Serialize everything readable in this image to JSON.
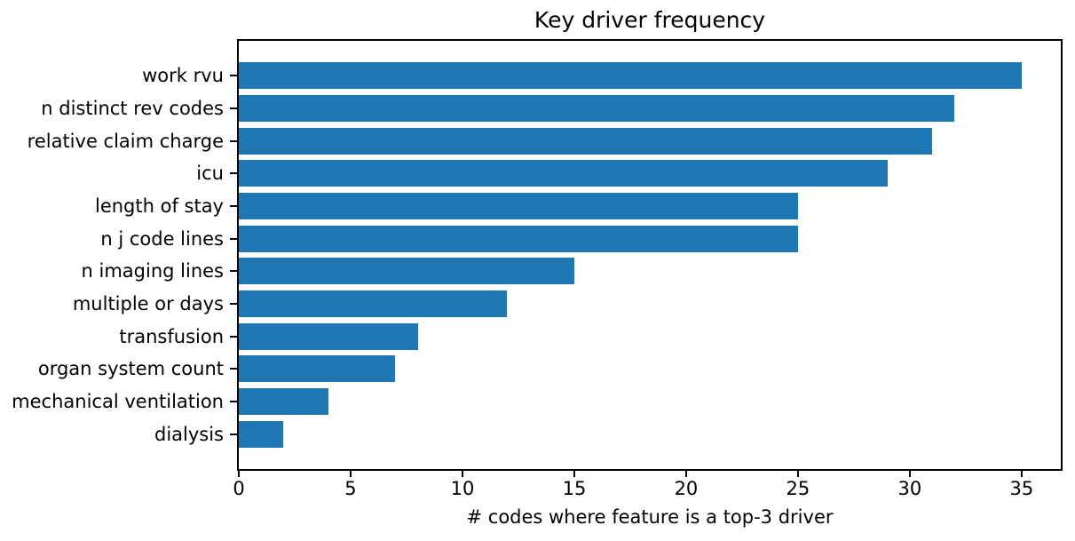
{
  "chart_data": {
    "type": "bar",
    "orientation": "horizontal",
    "title": "Key driver frequency",
    "xlabel": "# codes where feature is a top-3 driver",
    "categories": [
      "work rvu",
      "n distinct rev codes",
      "relative claim charge",
      "icu",
      "length of stay",
      "n j code lines",
      "n imaging lines",
      "multiple or days",
      "transfusion",
      "organ system count",
      "mechanical ventilation",
      "dialysis"
    ],
    "values": [
      35,
      32,
      31,
      29,
      25,
      25,
      15,
      12,
      8,
      7,
      4,
      2
    ],
    "xticks": [
      0,
      5,
      10,
      15,
      20,
      25,
      30,
      35
    ],
    "xlim": [
      0,
      36.75
    ],
    "grid": false,
    "bar_color": "#1f77b4",
    "spine_color": "#000000",
    "text_color": "#000000",
    "background_color": "#ffffff"
  }
}
